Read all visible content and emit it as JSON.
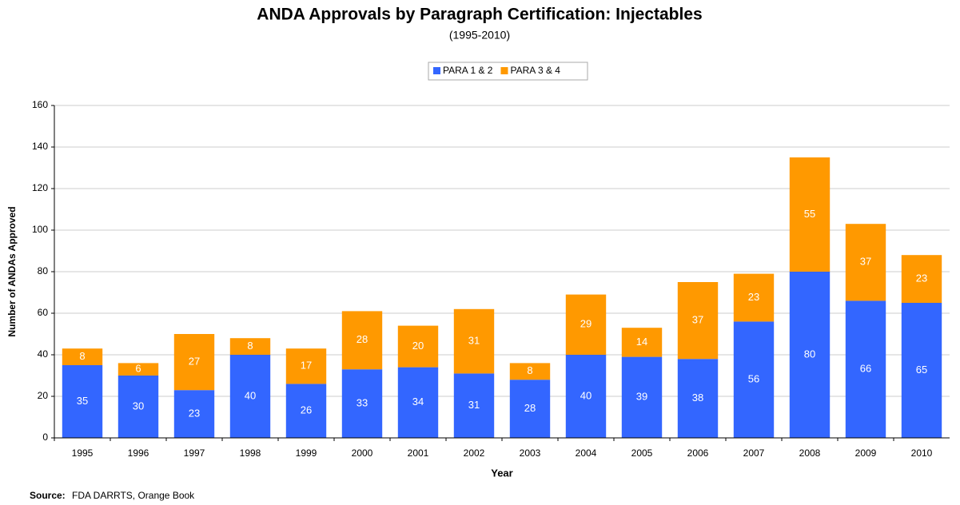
{
  "chart_data": {
    "type": "bar",
    "stacked": true,
    "title": "ANDA Approvals by Paragraph Certification: Injectables",
    "subtitle": "(1995-2010)",
    "x_label": "Year",
    "y_label": "Number of ANDAs Approved",
    "source_label": "Source:",
    "source": "FDA DARRTS, Orange Book",
    "categories": [
      "1995",
      "1996",
      "1997",
      "1998",
      "1999",
      "2000",
      "2001",
      "2002",
      "2003",
      "2004",
      "2005",
      "2006",
      "2007",
      "2008",
      "2009",
      "2010"
    ],
    "series": [
      {
        "name": "PARA 1 & 2",
        "color": "#3366ff",
        "values": [
          35,
          30,
          23,
          40,
          26,
          33,
          34,
          31,
          28,
          40,
          39,
          38,
          56,
          80,
          66,
          65
        ]
      },
      {
        "name": "PARA 3 & 4",
        "color": "#ff9900",
        "values": [
          8,
          6,
          27,
          8,
          17,
          28,
          20,
          31,
          8,
          29,
          14,
          37,
          23,
          55,
          37,
          23
        ]
      }
    ],
    "ylim": [
      0,
      160
    ],
    "yticks": [
      0,
      20,
      40,
      60,
      80,
      100,
      120,
      140,
      160
    ],
    "grid": true,
    "legend": "top"
  }
}
